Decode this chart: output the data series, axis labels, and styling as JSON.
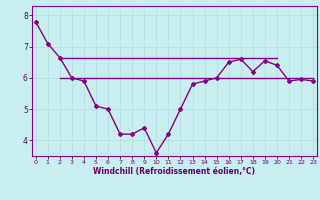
{
  "xlabel": "Windchill (Refroidissement éolien,°C)",
  "background_color": "#c8eef0",
  "grid_color": "#b0dde0",
  "line_color": "#880088",
  "x_main": [
    0,
    1,
    2,
    3,
    4,
    5,
    6,
    7,
    8,
    9,
    10,
    11,
    12,
    13,
    14,
    15,
    16,
    17,
    18,
    19,
    20,
    21,
    22,
    23
  ],
  "windchill_main": [
    7.8,
    7.1,
    6.65,
    6.0,
    5.9,
    5.1,
    5.0,
    4.2,
    4.2,
    4.4,
    3.6,
    4.2,
    5.0,
    5.8,
    5.9,
    6.0,
    6.5,
    6.6,
    6.2,
    6.55,
    6.4,
    5.9,
    5.95,
    5.9
  ],
  "x_upper": [
    2,
    3,
    4,
    5,
    6,
    7,
    8,
    9,
    10,
    11,
    12,
    13,
    14,
    15,
    16,
    17,
    18,
    19,
    20
  ],
  "windchill_upper": [
    6.65,
    6.65,
    6.65,
    6.65,
    6.65,
    6.65,
    6.65,
    6.65,
    6.65,
    6.65,
    6.65,
    6.65,
    6.65,
    6.65,
    6.65,
    6.65,
    6.65,
    6.65,
    6.65
  ],
  "x_lower": [
    2,
    3,
    4,
    5,
    6,
    7,
    8,
    9,
    10,
    11,
    12,
    13,
    14,
    15,
    16,
    17,
    18,
    19,
    20,
    21,
    22,
    23
  ],
  "windchill_lower": [
    6.0,
    6.0,
    6.0,
    6.0,
    6.0,
    6.0,
    6.0,
    6.0,
    6.0,
    6.0,
    6.0,
    6.0,
    6.0,
    6.0,
    6.0,
    6.0,
    6.0,
    6.0,
    6.0,
    6.0,
    6.0,
    6.0
  ],
  "ylim": [
    3.5,
    8.3
  ],
  "xlim": [
    -0.3,
    23.3
  ],
  "yticks": [
    4,
    5,
    6,
    7,
    8
  ],
  "xticks": [
    0,
    1,
    2,
    3,
    4,
    5,
    6,
    7,
    8,
    9,
    10,
    11,
    12,
    13,
    14,
    15,
    16,
    17,
    18,
    19,
    20,
    21,
    22,
    23
  ]
}
